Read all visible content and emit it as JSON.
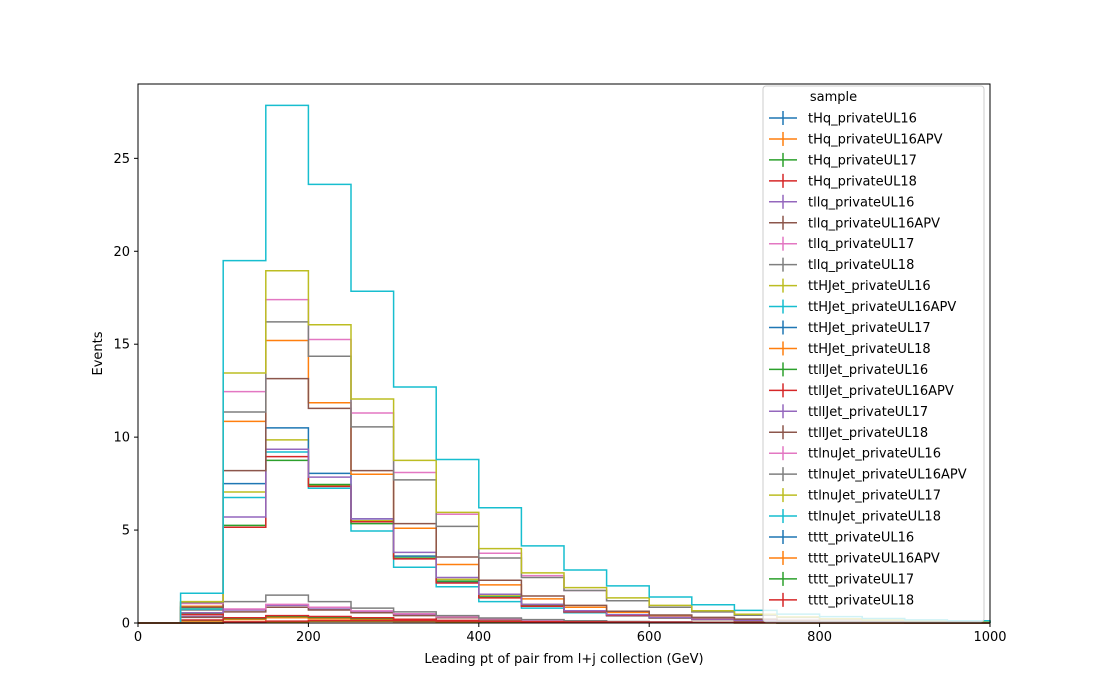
{
  "chart_data": {
    "type": "step-histogram",
    "xlabel": "Leading pt of pair from l+j collection (GeV)",
    "ylabel": "Events",
    "xlim": [
      0,
      1000
    ],
    "ylim": [
      0,
      29
    ],
    "x_ticks": [
      0,
      200,
      400,
      600,
      800,
      1000
    ],
    "y_ticks": [
      0,
      5,
      10,
      15,
      20,
      25
    ],
    "bin_edges": [
      0,
      50,
      100,
      150,
      200,
      250,
      300,
      350,
      400,
      450,
      500,
      550,
      600,
      650,
      700,
      750,
      800,
      850,
      900,
      950,
      1000
    ],
    "legend_title": "sample",
    "legend_position": "upper-right",
    "series": [
      {
        "name": "tHq_privateUL16",
        "color": "#1f77b4",
        "values": [
          0,
          0.12,
          0.2,
          0.3,
          0.25,
          0.2,
          0.15,
          0.1,
          0.08,
          0.06,
          0.04,
          0.03,
          0.02,
          0.02,
          0.01,
          0.01,
          0.01,
          0,
          0,
          0
        ]
      },
      {
        "name": "tHq_privateUL16APV",
        "color": "#ff7f0e",
        "values": [
          0,
          0.1,
          0.18,
          0.28,
          0.22,
          0.18,
          0.14,
          0.1,
          0.07,
          0.05,
          0.04,
          0.03,
          0.02,
          0.02,
          0.01,
          0.01,
          0.01,
          0,
          0,
          0
        ]
      },
      {
        "name": "tHq_privateUL17",
        "color": "#2ca02c",
        "values": [
          0,
          0.14,
          0.24,
          0.35,
          0.3,
          0.24,
          0.18,
          0.12,
          0.09,
          0.07,
          0.05,
          0.04,
          0.03,
          0.02,
          0.02,
          0.01,
          0.01,
          0,
          0,
          0
        ]
      },
      {
        "name": "tHq_privateUL18",
        "color": "#d62728",
        "values": [
          0,
          0.16,
          0.28,
          0.4,
          0.35,
          0.28,
          0.2,
          0.14,
          0.1,
          0.08,
          0.06,
          0.04,
          0.03,
          0.02,
          0.02,
          0.01,
          0.01,
          0,
          0,
          0
        ]
      },
      {
        "name": "tllq_privateUL16",
        "color": "#9467bd",
        "values": [
          0,
          0.35,
          0.7,
          0.95,
          0.75,
          0.6,
          0.45,
          0.3,
          0.2,
          0.14,
          0.1,
          0.07,
          0.05,
          0.03,
          0.02,
          0.02,
          0.01,
          0,
          0,
          0
        ]
      },
      {
        "name": "tllq_privateUL16APV",
        "color": "#8c564b",
        "values": [
          0,
          0.3,
          0.6,
          0.85,
          0.7,
          0.55,
          0.4,
          0.28,
          0.18,
          0.13,
          0.09,
          0.06,
          0.04,
          0.03,
          0.02,
          0.01,
          0.01,
          0,
          0,
          0
        ]
      },
      {
        "name": "tllq_privateUL17",
        "color": "#e377c2",
        "values": [
          0,
          0.5,
          0.75,
          1.0,
          0.85,
          0.65,
          0.5,
          0.33,
          0.22,
          0.15,
          0.1,
          0.07,
          0.05,
          0.03,
          0.02,
          0.02,
          0.01,
          0,
          0,
          0
        ]
      },
      {
        "name": "tllq_privateUL18",
        "color": "#7f7f7f",
        "values": [
          0,
          0.7,
          1.15,
          1.5,
          1.15,
          0.8,
          0.6,
          0.4,
          0.27,
          0.18,
          0.12,
          0.08,
          0.06,
          0.04,
          0.03,
          0.02,
          0.01,
          0,
          0,
          0
        ]
      },
      {
        "name": "ttHJet_privateUL16",
        "color": "#bcbd22",
        "values": [
          0,
          0.8,
          7.05,
          9.85,
          7.4,
          5.5,
          3.6,
          2.35,
          1.5,
          1.0,
          0.65,
          0.45,
          0.3,
          0.2,
          0.15,
          0.1,
          0.07,
          0.05,
          0.03,
          0.02
        ]
      },
      {
        "name": "ttHJet_privateUL16APV",
        "color": "#17becf",
        "values": [
          0,
          0.75,
          6.75,
          9.2,
          7.25,
          4.95,
          3.0,
          1.95,
          1.15,
          0.8,
          0.55,
          0.38,
          0.26,
          0.18,
          0.12,
          0.08,
          0.05,
          0.04,
          0.03,
          0.02
        ]
      },
      {
        "name": "ttHJet_privateUL17",
        "color": "#1f77b4",
        "values": [
          0,
          0.85,
          7.5,
          10.5,
          8.05,
          5.6,
          3.6,
          2.2,
          1.4,
          0.95,
          0.6,
          0.42,
          0.3,
          0.2,
          0.14,
          0.1,
          0.07,
          0.05,
          0.03,
          0.02
        ]
      },
      {
        "name": "ttHJet_privateUL18",
        "color": "#ff7f0e",
        "values": [
          0,
          0.9,
          10.85,
          15.2,
          11.85,
          8.0,
          5.1,
          3.15,
          2.05,
          1.3,
          0.85,
          0.58,
          0.4,
          0.28,
          0.19,
          0.13,
          0.09,
          0.06,
          0.04,
          0.03
        ]
      },
      {
        "name": "ttllJet_privateUL16",
        "color": "#2ca02c",
        "values": [
          0,
          0.5,
          5.25,
          8.75,
          7.45,
          5.35,
          3.5,
          2.25,
          1.4,
          0.95,
          0.62,
          0.42,
          0.3,
          0.2,
          0.14,
          0.1,
          0.07,
          0.05,
          0.03,
          0.02
        ]
      },
      {
        "name": "ttllJet_privateUL16APV",
        "color": "#d62728",
        "values": [
          0,
          0.45,
          5.15,
          8.95,
          7.35,
          5.45,
          3.45,
          2.15,
          1.35,
          0.9,
          0.6,
          0.4,
          0.28,
          0.19,
          0.13,
          0.09,
          0.06,
          0.04,
          0.03,
          0.02
        ]
      },
      {
        "name": "ttllJet_privateUL17",
        "color": "#9467bd",
        "values": [
          0,
          0.55,
          5.7,
          9.35,
          7.85,
          5.6,
          3.8,
          2.45,
          1.55,
          1.0,
          0.66,
          0.45,
          0.31,
          0.21,
          0.15,
          0.1,
          0.07,
          0.05,
          0.03,
          0.02
        ]
      },
      {
        "name": "ttllJet_privateUL18",
        "color": "#8c564b",
        "values": [
          0,
          0.85,
          8.2,
          13.15,
          11.55,
          8.2,
          5.35,
          3.55,
          2.3,
          1.45,
          0.95,
          0.63,
          0.43,
          0.3,
          0.21,
          0.15,
          0.1,
          0.07,
          0.05,
          0.03
        ]
      },
      {
        "name": "ttlnuJet_privateUL16",
        "color": "#e377c2",
        "values": [
          0,
          1.05,
          12.45,
          17.4,
          15.25,
          11.3,
          8.1,
          5.85,
          3.75,
          2.55,
          1.75,
          1.2,
          0.85,
          0.6,
          0.42,
          0.3,
          0.21,
          0.15,
          0.1,
          0.07
        ]
      },
      {
        "name": "ttlnuJet_privateUL16APV",
        "color": "#7f7f7f",
        "values": [
          0,
          1.1,
          11.35,
          16.2,
          14.35,
          10.55,
          7.7,
          5.2,
          3.5,
          2.45,
          1.75,
          1.2,
          0.85,
          0.6,
          0.42,
          0.3,
          0.21,
          0.15,
          0.1,
          0.07
        ]
      },
      {
        "name": "ttlnuJet_privateUL17",
        "color": "#bcbd22",
        "values": [
          0,
          1.15,
          13.45,
          18.95,
          16.05,
          12.05,
          8.75,
          5.95,
          4.0,
          2.7,
          1.9,
          1.35,
          0.95,
          0.66,
          0.47,
          0.33,
          0.23,
          0.16,
          0.11,
          0.08
        ]
      },
      {
        "name": "ttlnuJet_privateUL18",
        "color": "#17becf",
        "values": [
          0,
          1.6,
          19.5,
          27.85,
          23.6,
          17.85,
          12.7,
          8.8,
          6.2,
          4.15,
          2.85,
          2.0,
          1.4,
          0.98,
          0.68,
          0.48,
          0.34,
          0.24,
          0.17,
          0.12
        ]
      },
      {
        "name": "tttt_privateUL16",
        "color": "#1f77b4",
        "values": [
          0,
          0,
          0.05,
          0.08,
          0.1,
          0.1,
          0.09,
          0.08,
          0.07,
          0.06,
          0.05,
          0.04,
          0.03,
          0.02,
          0.02,
          0.01,
          0.01,
          0.01,
          0,
          0
        ]
      },
      {
        "name": "tttt_privateUL16APV",
        "color": "#ff7f0e",
        "values": [
          0,
          0,
          0.04,
          0.07,
          0.09,
          0.09,
          0.08,
          0.07,
          0.06,
          0.05,
          0.04,
          0.03,
          0.03,
          0.02,
          0.01,
          0.01,
          0.01,
          0,
          0,
          0
        ]
      },
      {
        "name": "tttt_privateUL17",
        "color": "#2ca02c",
        "values": [
          0,
          0,
          0.05,
          0.09,
          0.11,
          0.11,
          0.1,
          0.09,
          0.08,
          0.06,
          0.05,
          0.04,
          0.03,
          0.02,
          0.02,
          0.01,
          0.01,
          0.01,
          0,
          0
        ]
      },
      {
        "name": "tttt_privateUL18",
        "color": "#d62728",
        "values": [
          0,
          0,
          0.06,
          0.1,
          0.13,
          0.13,
          0.12,
          0.1,
          0.09,
          0.07,
          0.06,
          0.05,
          0.04,
          0.03,
          0.02,
          0.01,
          0.01,
          0.01,
          0,
          0
        ]
      }
    ]
  }
}
